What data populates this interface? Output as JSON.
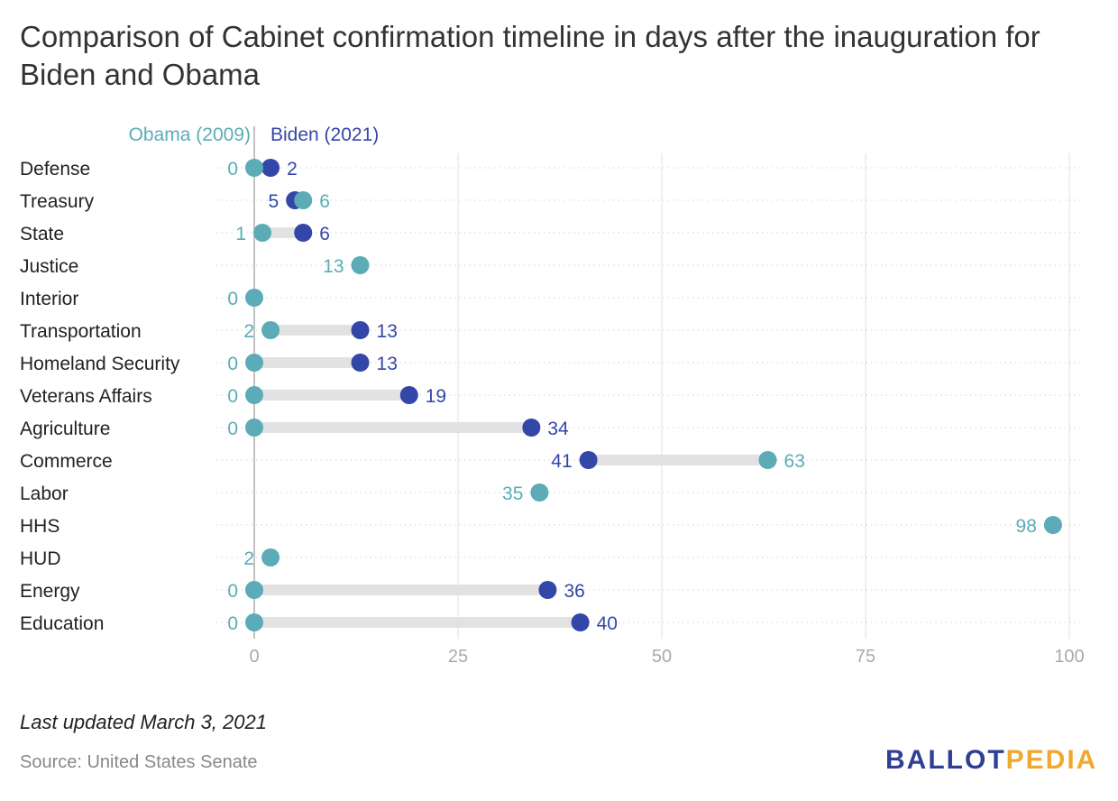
{
  "title": "Comparison of Cabinet confirmation timeline in days after the inauguration for Biden and Obama",
  "footnote": "Last updated March 3, 2021",
  "source": "Source: United States Senate",
  "logo": {
    "part1": "BALLOT",
    "part2": "PEDIA"
  },
  "colors": {
    "obama": "#5bacb7",
    "biden": "#3347a8",
    "connector": "#e2e2e2",
    "grid": "#e0e0e0",
    "axis": "#999999",
    "tick": "#aaaaaa",
    "label": "#222222"
  },
  "chart_data": {
    "type": "dumbbell",
    "title": "Comparison of Cabinet confirmation timeline in days after the inauguration for Biden and Obama",
    "xlim": [
      0,
      100
    ],
    "xticks": [
      0,
      25,
      50,
      75,
      100
    ],
    "legend": {
      "obama": "Obama (2009)",
      "biden": "Biden (2021)"
    },
    "categories": [
      "Defense",
      "Treasury",
      "State",
      "Justice",
      "Interior",
      "Transportation",
      "Homeland Security",
      "Veterans Affairs",
      "Agriculture",
      "Commerce",
      "Labor",
      "HHS",
      "HUD",
      "Energy",
      "Education"
    ],
    "series": [
      {
        "name": "Obama (2009)",
        "values": [
          0,
          6,
          1,
          13,
          0,
          2,
          0,
          0,
          0,
          63,
          35,
          98,
          2,
          0,
          0
        ]
      },
      {
        "name": "Biden (2021)",
        "values": [
          2,
          5,
          6,
          null,
          null,
          13,
          13,
          19,
          34,
          41,
          null,
          null,
          null,
          36,
          40
        ]
      }
    ]
  }
}
